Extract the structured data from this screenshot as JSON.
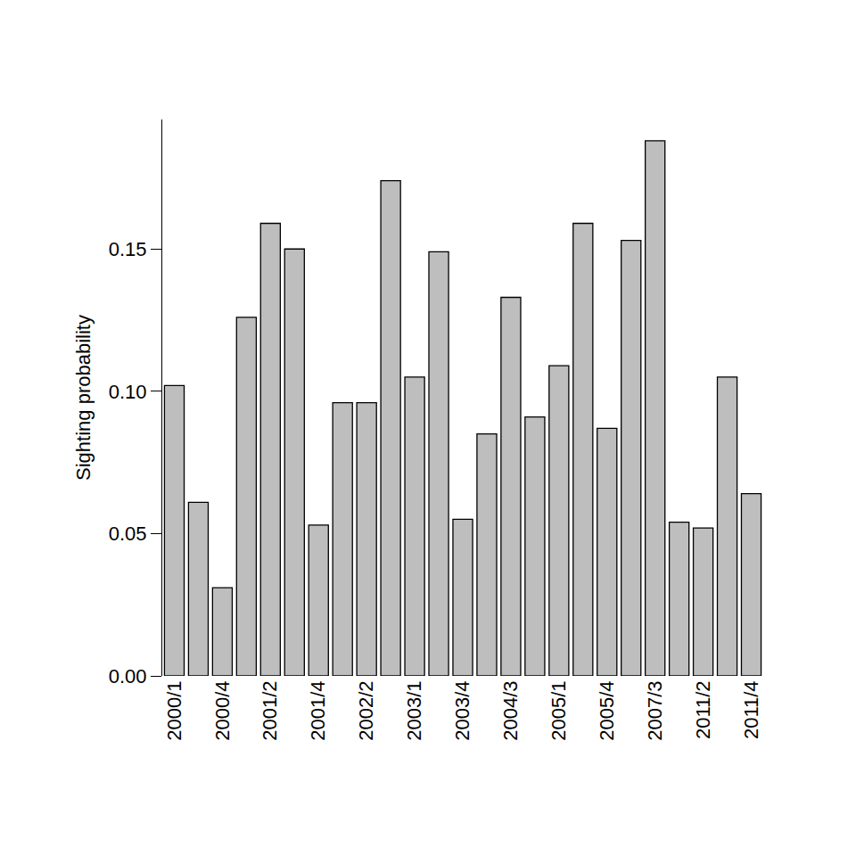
{
  "chart_data": {
    "type": "bar",
    "ylabel": "Sighting probability",
    "categories": [
      "2000/1",
      null,
      "2000/4",
      null,
      "2001/2",
      null,
      "2001/4",
      null,
      "2002/2",
      null,
      "2003/1",
      null,
      "2003/4",
      null,
      "2004/3",
      null,
      "2005/1",
      null,
      "2005/4",
      null,
      "2007/3",
      null,
      "2011/2",
      null,
      "2011/4"
    ],
    "values": [
      0.102,
      0.061,
      0.031,
      0.126,
      0.159,
      0.15,
      0.053,
      0.096,
      0.096,
      0.174,
      0.105,
      0.149,
      0.055,
      0.085,
      0.133,
      0.091,
      0.109,
      0.159,
      0.087,
      0.153,
      0.188,
      0.054,
      0.052,
      0.105,
      0.064
    ],
    "color": "#bebebe",
    "ylim": [
      0,
      0.1955
    ],
    "yticks": [
      {
        "value": 0,
        "label": "0.00"
      },
      {
        "value": 0.05,
        "label": "0.05"
      },
      {
        "value": 0.1,
        "label": "0.10"
      },
      {
        "value": 0.15,
        "label": "0.15"
      }
    ],
    "grid": false
  }
}
